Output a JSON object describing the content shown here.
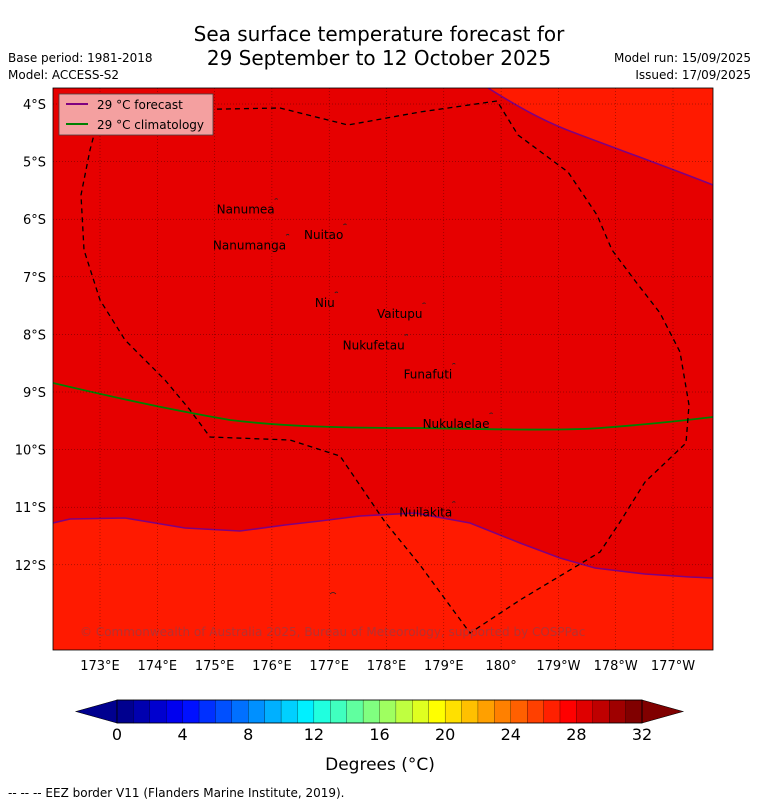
{
  "title": {
    "line1": "Sea surface temperature forecast for",
    "line2": "29 September to 12 October 2025"
  },
  "meta": {
    "base_period": "Base period: 1981-2018",
    "model": "Model: ACCESS-S2",
    "model_run": "Model run: 15/09/2025",
    "issued": "Issued: 17/09/2025"
  },
  "legend": {
    "forecast_label": "29 °C  forecast",
    "climatology_label": "29 °C  climatology",
    "forecast_color": "#800080",
    "climatology_color": "#008000"
  },
  "colors": {
    "band_28_30": "#ff1a00",
    "band_30_31": "#e60000",
    "band_31_32": "#c80000"
  },
  "axes": {
    "lat_ticks": [
      "4°S",
      "5°S",
      "6°S",
      "7°S",
      "8°S",
      "9°S",
      "10°S",
      "11°S",
      "12°S"
    ],
    "lon_ticks": [
      "173°E",
      "174°E",
      "175°E",
      "176°E",
      "177°E",
      "178°E",
      "179°E",
      "180°",
      "179°W",
      "178°W",
      "177°W"
    ]
  },
  "places": [
    {
      "name": "Nanumea",
      "lon": 176.1,
      "lat": -5.66
    },
    {
      "name": "Nuitao",
      "lon": 177.3,
      "lat": -6.1
    },
    {
      "name": "Nanumanga",
      "lon": 176.3,
      "lat": -6.28
    },
    {
      "name": "Niu",
      "lon": 177.15,
      "lat": -7.28
    },
    {
      "name": "Vaitupu",
      "lon": 178.68,
      "lat": -7.47
    },
    {
      "name": "Nukufetau",
      "lon": 178.37,
      "lat": -8.02
    },
    {
      "name": "Funafuti",
      "lon": 179.2,
      "lat": -8.52
    },
    {
      "name": "Nukulaelae",
      "lon": 179.85,
      "lat": -9.38
    },
    {
      "name": "Nuilakita",
      "lon": 179.2,
      "lat": -10.92
    }
  ],
  "copyright": "© Commonwealth of Australia 2025, Bureau of Meteorology, supported by COSPPac",
  "colorbar": {
    "label": "Degrees (°C)",
    "ticks": [
      "0",
      "4",
      "8",
      "12",
      "16",
      "20",
      "24",
      "28",
      "32"
    ],
    "min": 0,
    "max": 32,
    "step": 1,
    "colors": [
      "#00008f",
      "#0000af",
      "#0000cf",
      "#0000ef",
      "#0010ff",
      "#0030ff",
      "#0050ff",
      "#0070ff",
      "#0090ff",
      "#00b0ff",
      "#00d0ff",
      "#00f0ff",
      "#20ffdf",
      "#40ffbf",
      "#60ff9f",
      "#80ff80",
      "#9fff60",
      "#bfff40",
      "#dfff20",
      "#ffff00",
      "#ffe000",
      "#ffc000",
      "#ffa000",
      "#ff8000",
      "#ff6000",
      "#ff4000",
      "#ff2000",
      "#ff0000",
      "#df0000",
      "#bf0000",
      "#9f0000",
      "#800000"
    ],
    "under_color": "#00008f",
    "over_color": "#800000"
  },
  "footer": "--  --  -- EEZ border V11 (Flanders Marine Institute, 2019)."
}
